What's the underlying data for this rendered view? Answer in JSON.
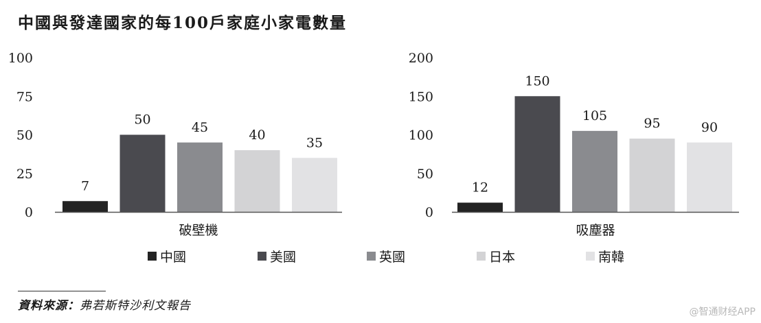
{
  "title": "中國與發達國家的每100戶家庭小家電數量",
  "legend": [
    {
      "label": "中國",
      "color": "#232323"
    },
    {
      "label": "美國",
      "color": "#4a4a4f"
    },
    {
      "label": "英國",
      "color": "#8a8b8f"
    },
    {
      "label": "日本",
      "color": "#d3d3d5"
    },
    {
      "label": "南韓",
      "color": "#e2e2e4"
    }
  ],
  "source_label": "資料來源：",
  "source_text": "弗若斯特沙利文報告",
  "watermark": "@智通财经APP",
  "chart_data": [
    {
      "type": "bar",
      "xlabel": "破壁機",
      "categories": [
        "中國",
        "美國",
        "英國",
        "日本",
        "南韓"
      ],
      "values": [
        7,
        50,
        45,
        40,
        35
      ],
      "data_labels": [
        "7",
        "50",
        "45",
        "40",
        "35"
      ],
      "ylim": [
        0,
        100
      ],
      "yticks": [
        0,
        25,
        50,
        75,
        100
      ],
      "colors": [
        "#232323",
        "#4a4a4f",
        "#8a8b8f",
        "#d3d3d5",
        "#e2e2e4"
      ],
      "grid": false
    },
    {
      "type": "bar",
      "xlabel": "吸塵器",
      "categories": [
        "中國",
        "美國",
        "英國",
        "日本",
        "南韓"
      ],
      "values": [
        12,
        150,
        105,
        95,
        90
      ],
      "data_labels": [
        "12",
        "150",
        "105",
        "95",
        "90"
      ],
      "ylim": [
        0,
        200
      ],
      "yticks": [
        0,
        50,
        100,
        150,
        200
      ],
      "colors": [
        "#232323",
        "#4a4a4f",
        "#8a8b8f",
        "#d3d3d5",
        "#e2e2e4"
      ],
      "grid": false
    }
  ]
}
